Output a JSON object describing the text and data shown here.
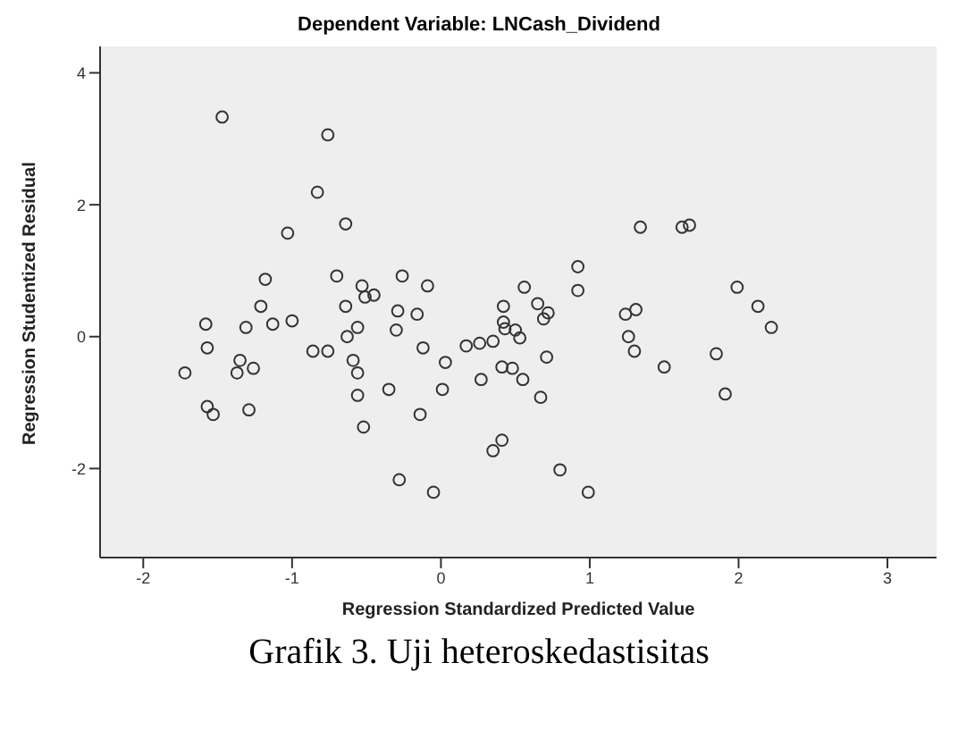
{
  "chart_data": {
    "type": "scatter",
    "title": "Dependent Variable: LNCash_Dividend",
    "xlabel": "Regression Standardized Predicted Value",
    "ylabel": "Regression Studentized Residual",
    "annotations": [
      "Grafik 3. Uji heteroskedastisitas"
    ],
    "x": [
      -1.47,
      -0.76,
      -0.83,
      -0.64,
      -1.03,
      1.34,
      1.62,
      1.67,
      -1.18,
      -0.7,
      -0.53,
      -0.26,
      -0.09,
      -0.51,
      -0.45,
      0.56,
      0.92,
      0.92,
      1.99,
      2.13,
      2.22,
      -1.21,
      -0.64,
      -0.29,
      -0.16,
      0.42,
      0.65,
      0.72,
      0.69,
      1.24,
      1.31,
      -1.58,
      -1.31,
      -1.13,
      -1.0,
      -0.56,
      -0.3,
      0.42,
      0.43,
      0.5,
      -0.63,
      1.26,
      0.53,
      0.35,
      -1.57,
      -0.86,
      -0.76,
      -0.12,
      0.17,
      0.26,
      1.3,
      1.85,
      -1.35,
      -0.59,
      0.71,
      0.03,
      -1.72,
      -1.37,
      -1.26,
      -0.56,
      0.41,
      0.48,
      1.5,
      0.55,
      0.27,
      -0.35,
      0.01,
      -0.56,
      0.67,
      1.91,
      -1.57,
      -1.53,
      -1.29,
      -0.14,
      -0.52,
      0.41,
      0.35,
      0.8,
      -0.28,
      -0.05,
      0.99
    ],
    "values": [
      3.33,
      3.06,
      2.19,
      1.71,
      1.57,
      1.66,
      1.66,
      1.69,
      0.87,
      0.92,
      0.77,
      0.92,
      0.77,
      0.6,
      0.63,
      0.75,
      1.06,
      0.7,
      0.75,
      0.46,
      0.14,
      0.46,
      0.46,
      0.39,
      0.34,
      0.46,
      0.5,
      0.36,
      0.27,
      0.34,
      0.41,
      0.19,
      0.14,
      0.19,
      0.24,
      0.14,
      0.1,
      0.22,
      0.12,
      0.1,
      0.0,
      0.0,
      -0.02,
      -0.07,
      -0.17,
      -0.22,
      -0.22,
      -0.17,
      -0.14,
      -0.1,
      -0.22,
      -0.26,
      -0.36,
      -0.36,
      -0.31,
      -0.39,
      -0.55,
      -0.55,
      -0.48,
      -0.55,
      -0.46,
      -0.48,
      -0.46,
      -0.65,
      -0.65,
      -0.8,
      -0.8,
      -0.89,
      -0.92,
      -0.87,
      -1.06,
      -1.18,
      -1.11,
      -1.18,
      -1.37,
      -1.57,
      -1.73,
      -2.02,
      -2.17,
      -2.36,
      -2.36
    ],
    "color": "#333333",
    "marker": "circle",
    "xlim": [
      -2.29,
      3.33
    ],
    "ylim": [
      -3.35,
      4.4
    ],
    "xticks": [
      -2,
      -1,
      0,
      1,
      2,
      3
    ],
    "yticks": [
      -2,
      0,
      2,
      4
    ],
    "grid": false
  }
}
